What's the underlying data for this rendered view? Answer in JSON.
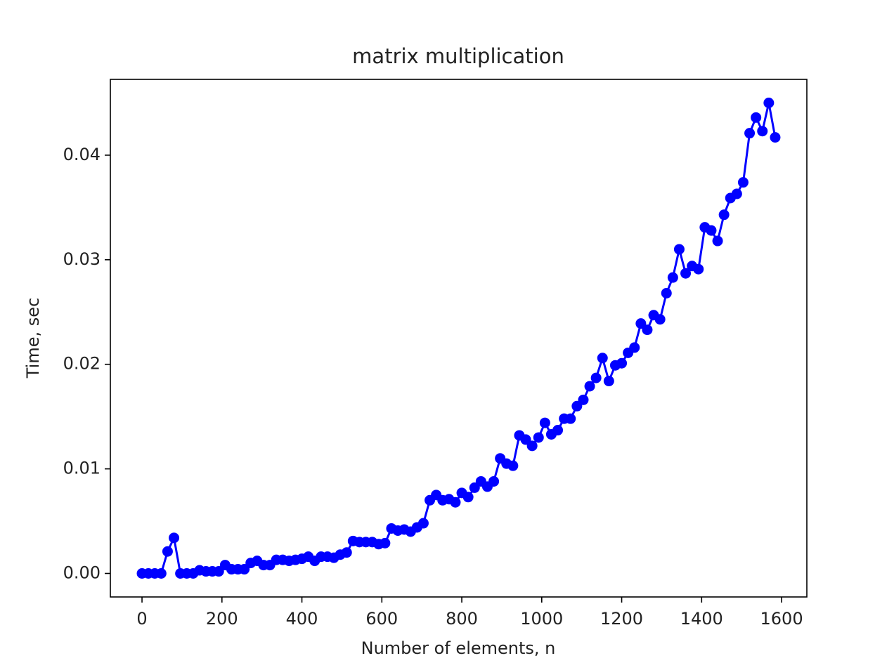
{
  "chart_data": {
    "type": "line",
    "title": "matrix multiplication",
    "x_label": "Number of elements, n",
    "y_label": "Time, sec",
    "x": [
      0,
      16,
      32,
      48,
      64,
      80,
      96,
      112,
      128,
      144,
      160,
      176,
      192,
      208,
      224,
      240,
      256,
      272,
      288,
      304,
      320,
      336,
      352,
      368,
      384,
      400,
      416,
      432,
      448,
      464,
      480,
      496,
      512,
      528,
      544,
      560,
      576,
      592,
      608,
      624,
      640,
      656,
      672,
      688,
      704,
      720,
      736,
      752,
      768,
      784,
      800,
      816,
      832,
      848,
      864,
      880,
      896,
      912,
      928,
      944,
      960,
      976,
      992,
      1008,
      1024,
      1040,
      1056,
      1072,
      1088,
      1104,
      1120,
      1136,
      1152,
      1168,
      1184,
      1200,
      1216,
      1232,
      1248,
      1264,
      1280,
      1296,
      1312,
      1328,
      1344,
      1360,
      1376,
      1392,
      1408,
      1424,
      1440,
      1456,
      1472,
      1488,
      1504,
      1520,
      1536,
      1552,
      1568,
      1584
    ],
    "values": [
      0,
      0,
      0,
      0,
      0.0021,
      0.0034,
      0,
      0,
      0,
      0.0003,
      0.0002,
      0.0002,
      0.0002,
      0.0008,
      0.0004,
      0.0004,
      0.0004,
      0.001,
      0.0012,
      0.0008,
      0.0008,
      0.0013,
      0.0013,
      0.0012,
      0.0013,
      0.0014,
      0.0016,
      0.0012,
      0.0016,
      0.0016,
      0.0015,
      0.0018,
      0.002,
      0.0031,
      0.003,
      0.003,
      0.003,
      0.0028,
      0.0029,
      0.0043,
      0.0041,
      0.0042,
      0.004,
      0.0044,
      0.0048,
      0.007,
      0.0075,
      0.007,
      0.0071,
      0.0068,
      0.0077,
      0.0073,
      0.0082,
      0.0088,
      0.0083,
      0.0088,
      0.011,
      0.0105,
      0.0103,
      0.0132,
      0.0128,
      0.0122,
      0.013,
      0.0144,
      0.0133,
      0.0137,
      0.0148,
      0.0148,
      0.016,
      0.0166,
      0.0179,
      0.0187,
      0.0206,
      0.0184,
      0.0199,
      0.0201,
      0.0211,
      0.0216,
      0.0239,
      0.0233,
      0.0247,
      0.0243,
      0.0268,
      0.0283,
      0.031,
      0.0287,
      0.0294,
      0.0291,
      0.0331,
      0.0328,
      0.0318,
      0.0343,
      0.0359,
      0.0363,
      0.0374,
      0.0421,
      0.0436,
      0.0423,
      0.045,
      0.0417
    ],
    "color": "#0000ff",
    "markers": true,
    "xlim": [
      -79.2,
      1663.2
    ],
    "xticks": [
      0,
      200,
      400,
      600,
      800,
      1000,
      1200,
      1400,
      1600
    ],
    "ylim": [
      -0.00225,
      0.04725
    ],
    "yticks": [
      {
        "value": 0,
        "label": "0.00"
      },
      0.01,
      0.02,
      0.03,
      0.04
    ]
  }
}
